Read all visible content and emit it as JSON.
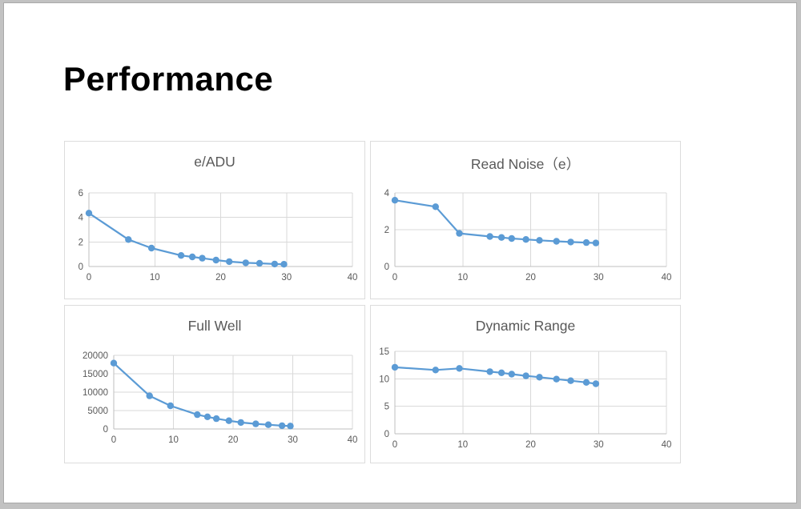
{
  "slide": {
    "title": "Performance"
  },
  "theme": {
    "accent": "#5B9BD5",
    "grid_color": "#D9D9D9",
    "axis_color": "#BFBFBF",
    "text_color": "#595959",
    "panel_border": "#DCDCDC",
    "frame_color": "#C2C2C2",
    "slide_bg": "#FFFFFF"
  },
  "chart_data": [
    {
      "type": "line",
      "title": "e/ADU",
      "x": [
        0,
        6,
        9.5,
        14,
        15.7,
        17.2,
        19.3,
        21.3,
        23.8,
        25.9,
        28.2,
        29.6
      ],
      "values": [
        4.35,
        2.2,
        1.5,
        0.9,
        0.78,
        0.68,
        0.52,
        0.4,
        0.3,
        0.26,
        0.2,
        0.18
      ],
      "xlim": [
        0,
        40
      ],
      "ylim": [
        0,
        6
      ],
      "x_ticks": [
        0,
        10,
        20,
        30,
        40
      ],
      "y_ticks": [
        0,
        2,
        4,
        6
      ],
      "grid": true,
      "legend": "none",
      "marker": "circle"
    },
    {
      "type": "line",
      "title": "Read Noise（e）",
      "x": [
        0,
        6,
        9.5,
        14,
        15.7,
        17.2,
        19.3,
        21.3,
        23.8,
        25.9,
        28.2,
        29.6
      ],
      "values": [
        3.6,
        3.25,
        1.8,
        1.63,
        1.58,
        1.52,
        1.47,
        1.42,
        1.37,
        1.33,
        1.3,
        1.28
      ],
      "xlim": [
        0,
        40
      ],
      "ylim": [
        0,
        4
      ],
      "x_ticks": [
        0,
        10,
        20,
        30,
        40
      ],
      "y_ticks": [
        0,
        2,
        4
      ],
      "grid": true,
      "legend": "none",
      "marker": "circle"
    },
    {
      "type": "line",
      "title": "Full Well",
      "x": [
        0,
        6,
        9.5,
        14,
        15.7,
        17.2,
        19.3,
        21.3,
        23.8,
        25.9,
        28.2,
        29.6
      ],
      "values": [
        17900,
        9000,
        6300,
        3900,
        3300,
        2800,
        2250,
        1750,
        1400,
        1150,
        900,
        800
      ],
      "xlim": [
        0,
        40
      ],
      "ylim": [
        0,
        20000
      ],
      "x_ticks": [
        0,
        10,
        20,
        30,
        40
      ],
      "y_ticks": [
        0,
        5000,
        10000,
        15000,
        20000
      ],
      "grid": true,
      "legend": "none",
      "marker": "circle"
    },
    {
      "type": "line",
      "title": "Dynamic Range",
      "x": [
        0,
        6,
        9.5,
        14,
        15.7,
        17.2,
        19.3,
        21.3,
        23.8,
        25.9,
        28.2,
        29.6
      ],
      "values": [
        12.1,
        11.6,
        11.9,
        11.3,
        11.1,
        10.85,
        10.55,
        10.3,
        9.95,
        9.65,
        9.35,
        9.1
      ],
      "xlim": [
        0,
        40
      ],
      "ylim": [
        0,
        15
      ],
      "x_ticks": [
        0,
        10,
        20,
        30,
        40
      ],
      "y_ticks": [
        0,
        5,
        10,
        15
      ],
      "grid": true,
      "legend": "none",
      "marker": "circle"
    }
  ]
}
